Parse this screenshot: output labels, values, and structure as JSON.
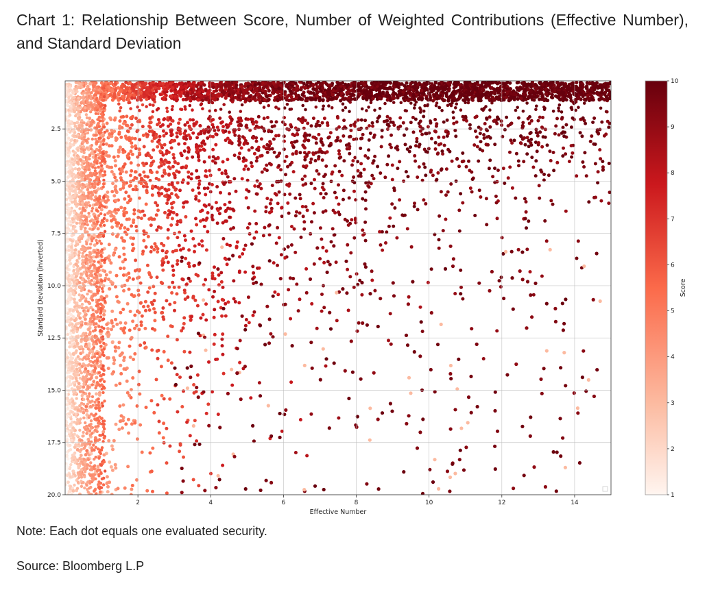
{
  "title": "Chart 1: Relationship Between Score, Number of Weighted Contributions (Effective Number), and Standard Deviation",
  "note": "Note: Each dot equals one evaluated security.",
  "source": "Source: Bloomberg L.P",
  "chart_data": {
    "type": "scatter",
    "xlabel": "Effective Number",
    "ylabel": "Standard Deviation (inverted)",
    "colorbar_label": "Score",
    "xlim": [
      0,
      15
    ],
    "ylim": [
      20.0,
      0.2
    ],
    "y_inverted": true,
    "xticks": [
      "2",
      "4",
      "6",
      "8",
      "10",
      "12",
      "14"
    ],
    "yticks": [
      "2.5",
      "5.0",
      "7.5",
      "10.0",
      "12.5",
      "15.0",
      "17.5",
      "20.0"
    ],
    "colorbar_range": [
      1,
      10
    ],
    "colorbar_ticks": [
      "1",
      "2",
      "3",
      "4",
      "5",
      "6",
      "7",
      "8",
      "9",
      "10"
    ],
    "colormap": [
      "#fff5f0",
      "#fcbba1",
      "#fb6a4a",
      "#cb181d",
      "#67000d"
    ],
    "grid": true,
    "description_of_distribution": "Thousands of points; score increases with effective number and decreases with standard deviation",
    "sample_points": [
      {
        "x": 1.0,
        "y": 3.0,
        "score": 4
      },
      {
        "x": 2.0,
        "y": 3.0,
        "score": 7
      },
      {
        "x": 4.0,
        "y": 3.0,
        "score": 8
      },
      {
        "x": 8.0,
        "y": 3.0,
        "score": 9
      },
      {
        "x": 12.0,
        "y": 3.0,
        "score": 10
      },
      {
        "x": 2.0,
        "y": 8.0,
        "score": 6
      },
      {
        "x": 4.0,
        "y": 8.0,
        "score": 8
      },
      {
        "x": 8.0,
        "y": 8.0,
        "score": 9
      },
      {
        "x": 12.0,
        "y": 7.0,
        "score": 10
      },
      {
        "x": 2.0,
        "y": 15.0,
        "score": 7
      },
      {
        "x": 6.0,
        "y": 15.0,
        "score": 9
      },
      {
        "x": 12.0,
        "y": 16.0,
        "score": 9
      },
      {
        "x": 14.0,
        "y": 18.0,
        "score": 10
      }
    ]
  }
}
